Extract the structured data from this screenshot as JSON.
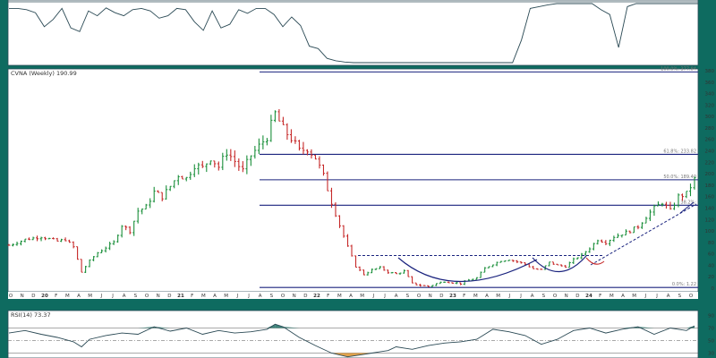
{
  "colors": {
    "frame": "#0e6b60",
    "panel_bg": "#ffffff",
    "line": "#2b4a55",
    "fib": "#1a237e",
    "up": "#1a8f3a",
    "down": "#c62828",
    "rsi_over": "#1f6f64",
    "rsi_under": "#d9902b"
  },
  "chart_data": [
    {
      "type": "line",
      "panel": "top-indicator",
      "title": "",
      "x": [
        0,
        10,
        20,
        30,
        40,
        50,
        60,
        70,
        80,
        90,
        100,
        110,
        120,
        130,
        140,
        150,
        160,
        170,
        180,
        190,
        200,
        210,
        220,
        230,
        240,
        250,
        260,
        270,
        280,
        290,
        300,
        310,
        320,
        330,
        340,
        350,
        360,
        370,
        380,
        390,
        400,
        410,
        420,
        430,
        440,
        450,
        460,
        470,
        480,
        490,
        500,
        510,
        520,
        530,
        540,
        550,
        560,
        570,
        580,
        590,
        600,
        610,
        620,
        630,
        640,
        650,
        660,
        670,
        680,
        690,
        700,
        710,
        720,
        730,
        740,
        750,
        760,
        770,
        780
      ],
      "values": [
        92,
        92,
        90,
        85,
        62,
        74,
        92,
        60,
        54,
        88,
        80,
        93,
        85,
        80,
        90,
        92,
        88,
        76,
        80,
        92,
        90,
        70,
        56,
        88,
        60,
        66,
        90,
        84,
        92,
        92,
        82,
        62,
        78,
        64,
        30,
        26,
        10,
        6,
        4,
        3,
        3,
        3,
        3,
        3,
        3,
        3,
        3,
        3,
        3,
        3,
        3,
        3,
        3,
        3,
        3,
        3,
        3,
        3,
        40,
        92,
        95,
        98,
        100,
        100,
        100,
        100,
        100,
        90,
        82,
        28,
        95,
        100,
        100,
        100,
        100,
        100,
        100,
        100,
        100
      ],
      "ylim": [
        0,
        100
      ]
    },
    {
      "type": "ohlc",
      "panel": "price",
      "title": "CVNA (Weekly) 190.99",
      "xlabel": "",
      "ylabel": "",
      "ylim": [
        0,
        380
      ],
      "yticks": [
        0,
        20,
        40,
        60,
        80,
        100,
        120,
        140,
        160,
        180,
        200,
        220,
        240,
        260,
        280,
        300,
        320,
        340,
        360,
        380
      ],
      "xtick_labels": [
        "O",
        "N",
        "D",
        "20",
        "F",
        "M",
        "A",
        "M",
        "J",
        "J",
        "A",
        "S",
        "O",
        "N",
        "D",
        "21",
        "F",
        "M",
        "A",
        "M",
        "J",
        "J",
        "A",
        "S",
        "O",
        "N",
        "D",
        "22",
        "F",
        "M",
        "A",
        "M",
        "J",
        "J",
        "A",
        "S",
        "O",
        "N",
        "D",
        "23",
        "F",
        "M",
        "A",
        "M",
        "J",
        "J",
        "A",
        "S",
        "O",
        "N",
        "D",
        "24",
        "F",
        "M",
        "A",
        "M",
        "J",
        "J",
        "A",
        "S",
        "O"
      ],
      "close_path": [
        [
          0,
          75
        ],
        [
          4,
          85
        ],
        [
          8,
          90
        ],
        [
          12,
          82
        ],
        [
          14,
          85
        ],
        [
          16,
          72
        ],
        [
          18,
          28
        ],
        [
          20,
          48
        ],
        [
          22,
          62
        ],
        [
          26,
          80
        ],
        [
          28,
          110
        ],
        [
          30,
          100
        ],
        [
          32,
          135
        ],
        [
          34,
          142
        ],
        [
          36,
          168
        ],
        [
          38,
          160
        ],
        [
          40,
          178
        ],
        [
          42,
          198
        ],
        [
          44,
          192
        ],
        [
          46,
          215
        ],
        [
          48,
          210
        ],
        [
          50,
          228
        ],
        [
          52,
          212
        ],
        [
          54,
          238
        ],
        [
          56,
          222
        ],
        [
          58,
          205
        ],
        [
          60,
          232
        ],
        [
          62,
          248
        ],
        [
          64,
          265
        ],
        [
          66,
          305
        ],
        [
          68,
          278
        ],
        [
          70,
          262
        ],
        [
          72,
          240
        ],
        [
          74,
          244
        ],
        [
          76,
          228
        ],
        [
          78,
          196
        ],
        [
          80,
          150
        ],
        [
          82,
          110
        ],
        [
          84,
          72
        ],
        [
          86,
          38
        ],
        [
          88,
          24
        ],
        [
          90,
          32
        ],
        [
          92,
          36
        ],
        [
          94,
          28
        ],
        [
          96,
          25
        ],
        [
          98,
          30
        ],
        [
          100,
          8
        ],
        [
          102,
          5
        ],
        [
          104,
          3
        ],
        [
          106,
          8
        ],
        [
          108,
          12
        ],
        [
          110,
          10
        ],
        [
          112,
          8
        ],
        [
          114,
          14
        ],
        [
          116,
          18
        ],
        [
          118,
          35
        ],
        [
          120,
          42
        ],
        [
          122,
          48
        ],
        [
          124,
          50
        ],
        [
          126,
          46
        ],
        [
          128,
          42
        ],
        [
          130,
          34
        ],
        [
          132,
          32
        ],
        [
          134,
          45
        ],
        [
          136,
          40
        ],
        [
          138,
          38
        ],
        [
          140,
          50
        ],
        [
          142,
          58
        ],
        [
          144,
          70
        ],
        [
          146,
          85
        ],
        [
          148,
          80
        ],
        [
          150,
          90
        ],
        [
          152,
          95
        ],
        [
          154,
          100
        ],
        [
          156,
          108
        ],
        [
          158,
          125
        ],
        [
          160,
          140
        ],
        [
          162,
          150
        ],
        [
          164,
          135
        ],
        [
          166,
          160
        ],
        [
          168,
          165
        ],
        [
          170,
          190
        ]
      ],
      "fib_levels": [
        {
          "label": "100.0%: 377.84",
          "value": 377.84
        },
        {
          "label": "61.8%: 233.82",
          "value": 233.82
        },
        {
          "label": "50.0%: 189.40",
          "value": 189.4
        },
        {
          "label": "38.2%:",
          "value": 145.0
        },
        {
          "label": "0.0%: 1.22",
          "value": 1.22
        }
      ],
      "neckline": 57,
      "grid": false
    },
    {
      "type": "line",
      "panel": "rsi",
      "title": "RSI(14) 73.37",
      "ylim": [
        25,
        95
      ],
      "yticks": [
        30,
        50,
        70,
        90
      ],
      "levels": [
        30,
        50,
        70
      ],
      "x": [
        0,
        4,
        8,
        12,
        16,
        18,
        20,
        24,
        28,
        32,
        36,
        40,
        44,
        48,
        52,
        56,
        60,
        64,
        66,
        68,
        72,
        76,
        80,
        84,
        86,
        88,
        90,
        92,
        94,
        96,
        98,
        100,
        104,
        108,
        112,
        116,
        118,
        120,
        124,
        128,
        132,
        136,
        140,
        144,
        148,
        152,
        156,
        160,
        164,
        168,
        170
      ],
      "values": [
        62,
        66,
        60,
        55,
        48,
        40,
        52,
        58,
        62,
        60,
        72,
        65,
        70,
        60,
        66,
        62,
        64,
        68,
        76,
        72,
        55,
        42,
        30,
        24,
        26,
        28,
        30,
        32,
        34,
        40,
        38,
        36,
        42,
        46,
        48,
        52,
        60,
        68,
        64,
        58,
        44,
        52,
        66,
        70,
        62,
        68,
        72,
        60,
        70,
        66,
        73.37
      ]
    }
  ]
}
